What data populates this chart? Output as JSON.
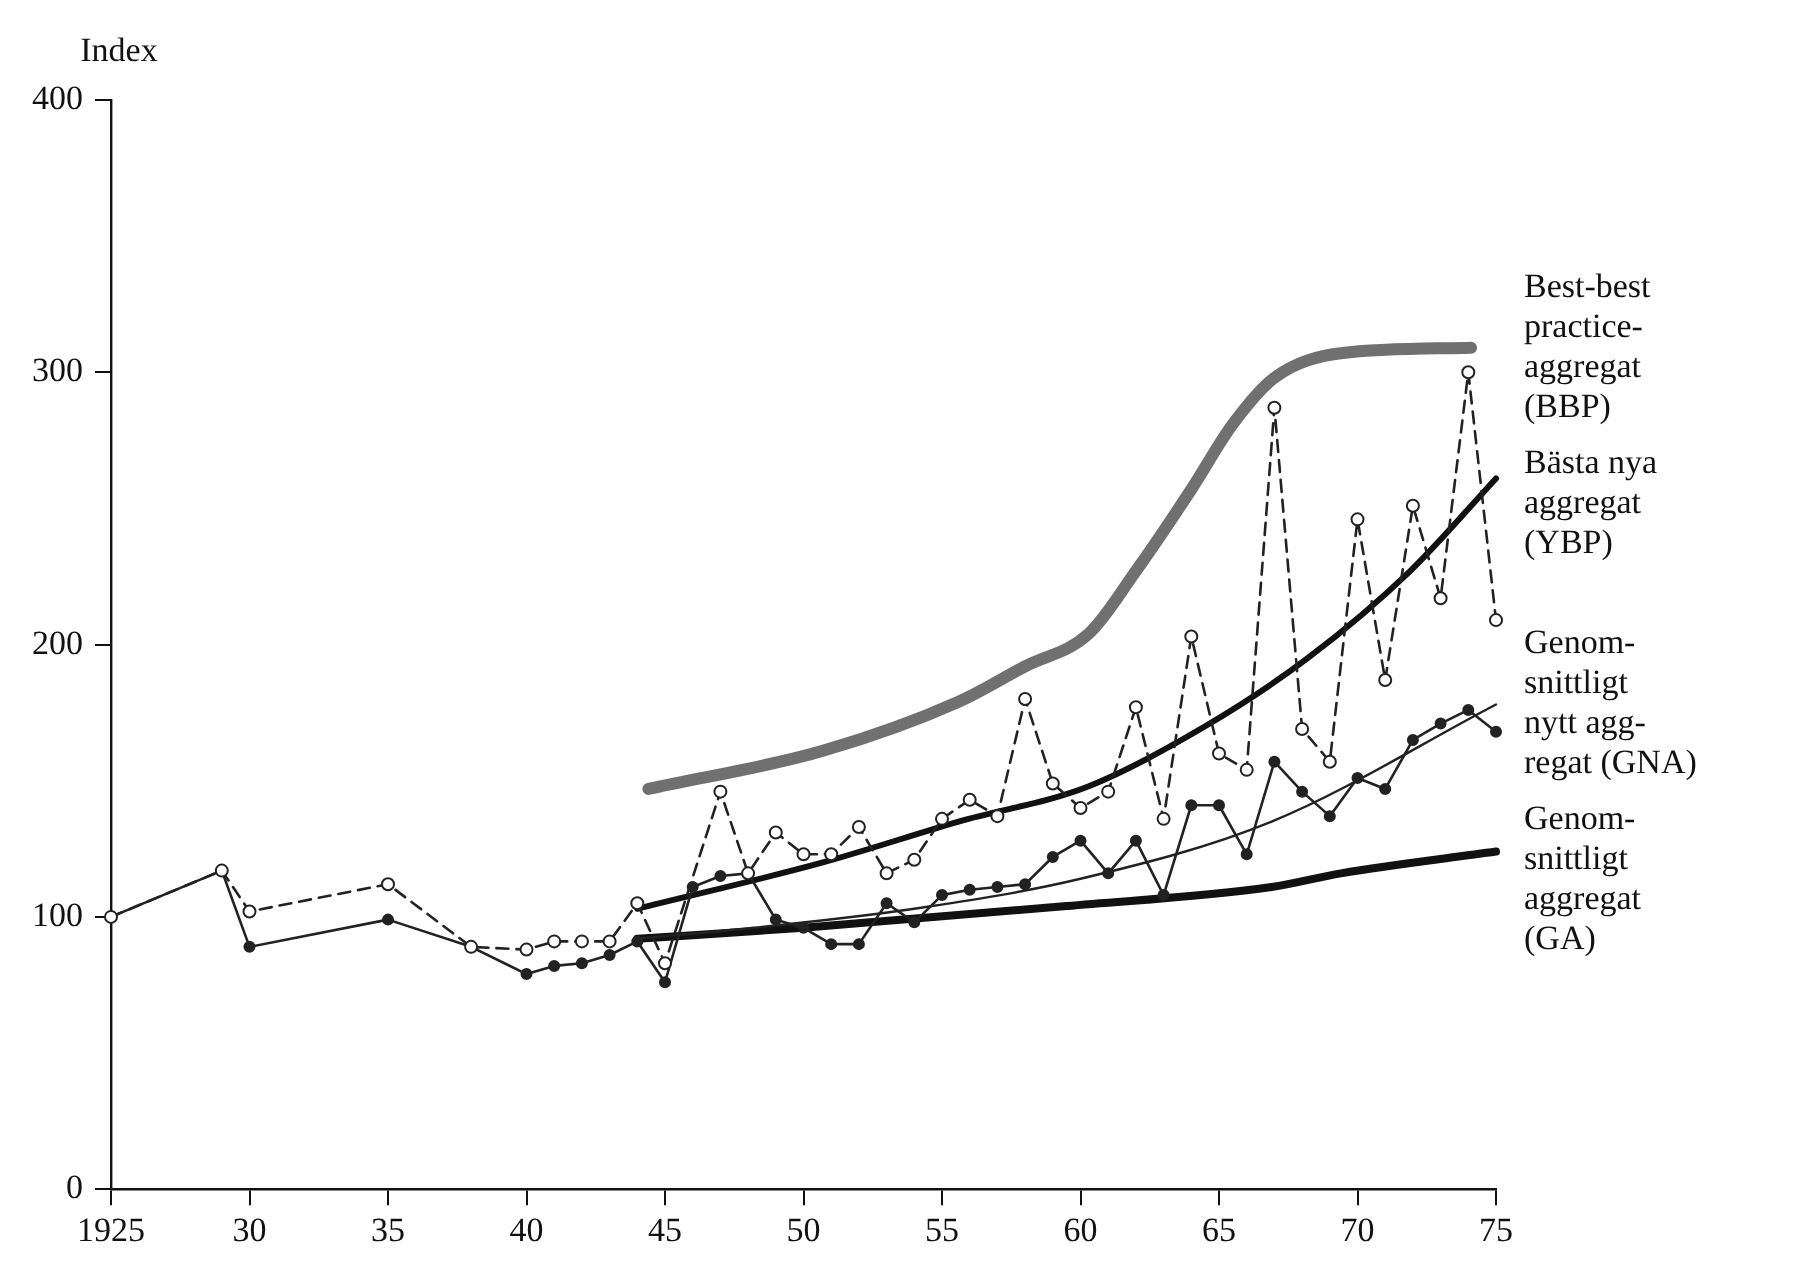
{
  "chart_data": {
    "type": "line",
    "ylabel": "Index",
    "xlim": [
      1925,
      1975
    ],
    "ylim": [
      0,
      400
    ],
    "xticks": [
      1925,
      {
        "value": 1930,
        "label": "30"
      },
      {
        "value": 1935,
        "label": "35"
      },
      {
        "value": 1940,
        "label": "40"
      },
      {
        "value": 1945,
        "label": "45"
      },
      {
        "value": 1950,
        "label": "50"
      },
      {
        "value": 1955,
        "label": "55"
      },
      {
        "value": 1960,
        "label": "60"
      },
      {
        "value": 1965,
        "label": "65"
      },
      {
        "value": 1970,
        "label": "70"
      },
      {
        "value": 1975,
        "label": "75"
      }
    ],
    "yticks": [
      0,
      100,
      200,
      300,
      400
    ],
    "grid": false,
    "legend": false,
    "series": [
      {
        "color": "#222222",
        "line_style": "dashed",
        "marker": "circle",
        "x": [
          1925,
          1929,
          1930,
          1935,
          1938,
          1940,
          1941,
          1942,
          1943,
          1944,
          1945,
          1947,
          1948,
          1949,
          1950,
          1951,
          1952,
          1953,
          1954,
          1955,
          1956,
          1957,
          1958,
          1959,
          1960,
          1961,
          1962,
          1963,
          1964,
          1965,
          1966,
          1967,
          1968,
          1969,
          1970,
          1971,
          1972,
          1973,
          1974,
          1975
        ],
        "values": [
          100,
          117,
          102,
          112,
          89,
          88,
          91,
          91,
          91,
          105,
          83,
          146,
          116,
          131,
          123,
          123,
          133,
          116,
          121,
          136,
          143,
          137,
          180,
          149,
          140,
          146,
          177,
          136,
          203,
          160,
          154,
          287,
          169,
          157,
          246,
          187,
          251,
          217,
          300,
          209
        ]
      },
      {
        "color": "#222222",
        "line_style": "solid",
        "marker": "circle",
        "x": [
          1925,
          1929,
          1930,
          1935,
          1938,
          1940,
          1941,
          1942,
          1943,
          1944,
          1945,
          1946,
          1947,
          1948,
          1949,
          1950,
          1951,
          1952,
          1953,
          1954,
          1955,
          1956,
          1957,
          1958,
          1959,
          1960,
          1961,
          1962,
          1963,
          1964,
          1965,
          1966,
          1967,
          1968,
          1969,
          1970,
          1971,
          1972,
          1973,
          1974,
          1975
        ],
        "values": [
          100,
          117,
          89,
          99,
          89,
          79,
          82,
          83,
          86,
          91,
          76,
          111,
          115,
          116,
          99,
          96,
          90,
          90,
          105,
          98,
          108,
          110,
          111,
          112,
          122,
          128,
          116,
          128,
          108,
          141,
          141,
          123,
          157,
          146,
          137,
          151,
          147,
          165,
          171,
          176,
          168
        ]
      },
      {
        "name": "Best-best\npractice-\naggregat\n(BBP)",
        "color": "#707070",
        "line_style": "solid",
        "marker": "none",
        "x": [
          1944.4,
          1950.7,
          1955.6,
          1958,
          1960.3,
          1962,
          1964,
          1965.5,
          1967,
          1969.4,
          1974.1
        ],
        "values": [
          147,
          161,
          179,
          192,
          204,
          227,
          257,
          281,
          298,
          307,
          309
        ]
      },
      {
        "name": "Bästa nya\naggregat\n(YBP)",
        "color": "#111111",
        "line_style": "solid",
        "marker": "none",
        "x": [
          1944,
          1950.7,
          1955.6,
          1960.3,
          1964.5,
          1968.2,
          1971.9,
          1975
        ],
        "values": [
          103,
          120,
          135,
          148,
          170,
          195,
          227,
          261
        ]
      },
      {
        "name": "Genom-\nsnittligt\nnytt agg-\nregat (GNA)",
        "color": "#222222",
        "line_style": "solid",
        "marker": "none",
        "x": [
          1944,
          1948.2,
          1954,
          1960,
          1966.9,
          1975
        ],
        "values": [
          92,
          96,
          103,
          114,
          135,
          178
        ]
      },
      {
        "name": "Genom-\nsnittligt\naggregat\n(GA)",
        "color": "#111111",
        "line_style": "solid",
        "marker": "none",
        "x": [
          1944,
          1950,
          1959.5,
          1966.9,
          1969.4,
          1975
        ],
        "values": [
          92,
          96,
          104,
          111,
          116,
          124
        ]
      }
    ]
  }
}
